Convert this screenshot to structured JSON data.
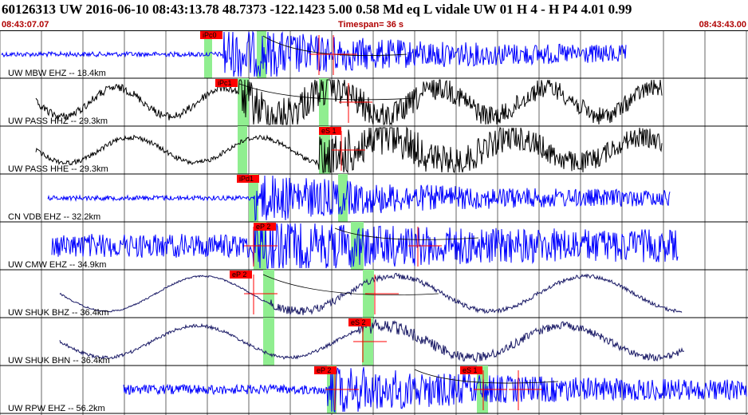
{
  "header": {
    "title": "60126313 UW 2016-06-10 08:43:13.78    48.7373 -122.1423    5.00  0.58 Md   eq   L vidale    UW 01   H    4   -   H P4     4.01  0.99",
    "start_time": "08:43:07.07",
    "timespan": "Timespan=  36 s",
    "end_time": "08:43:43.00"
  },
  "colors": {
    "blue_trace": "#0000ff",
    "black_trace": "#000000",
    "navy_trace": "#1a1a66",
    "pick_box": "#ff0000",
    "pick_window": "#90ee90",
    "grid": "#000000"
  },
  "traces": [
    {
      "label": "UW MBW EHZ -- 18.4km",
      "color": "blue",
      "picks": [
        "iPc0"
      ]
    },
    {
      "label": "UW PASS HHZ -- 29.3km",
      "color": "black",
      "picks": [
        "iPc1"
      ]
    },
    {
      "label": "UW PASS HHE -- 29.3km",
      "color": "black",
      "picks": [
        "eS 1"
      ]
    },
    {
      "label": "CN VDB EHZ -- 32.2km",
      "color": "blue",
      "picks": [
        "iPd1"
      ]
    },
    {
      "label": "UW CMW EHZ -- 34.9km",
      "color": "blue",
      "picks": [
        "eP 2"
      ]
    },
    {
      "label": "UW SHUK BHZ -- 36.4km",
      "color": "navy",
      "picks": [
        "eP 2"
      ]
    },
    {
      "label": "UW SHUK BHN -- 36.4km",
      "color": "navy",
      "picks": [
        "eS 2"
      ]
    },
    {
      "label": "UW RPW EHZ -- 56.2km",
      "color": "blue",
      "picks": [
        "eP 2",
        "eS 1"
      ]
    }
  ]
}
